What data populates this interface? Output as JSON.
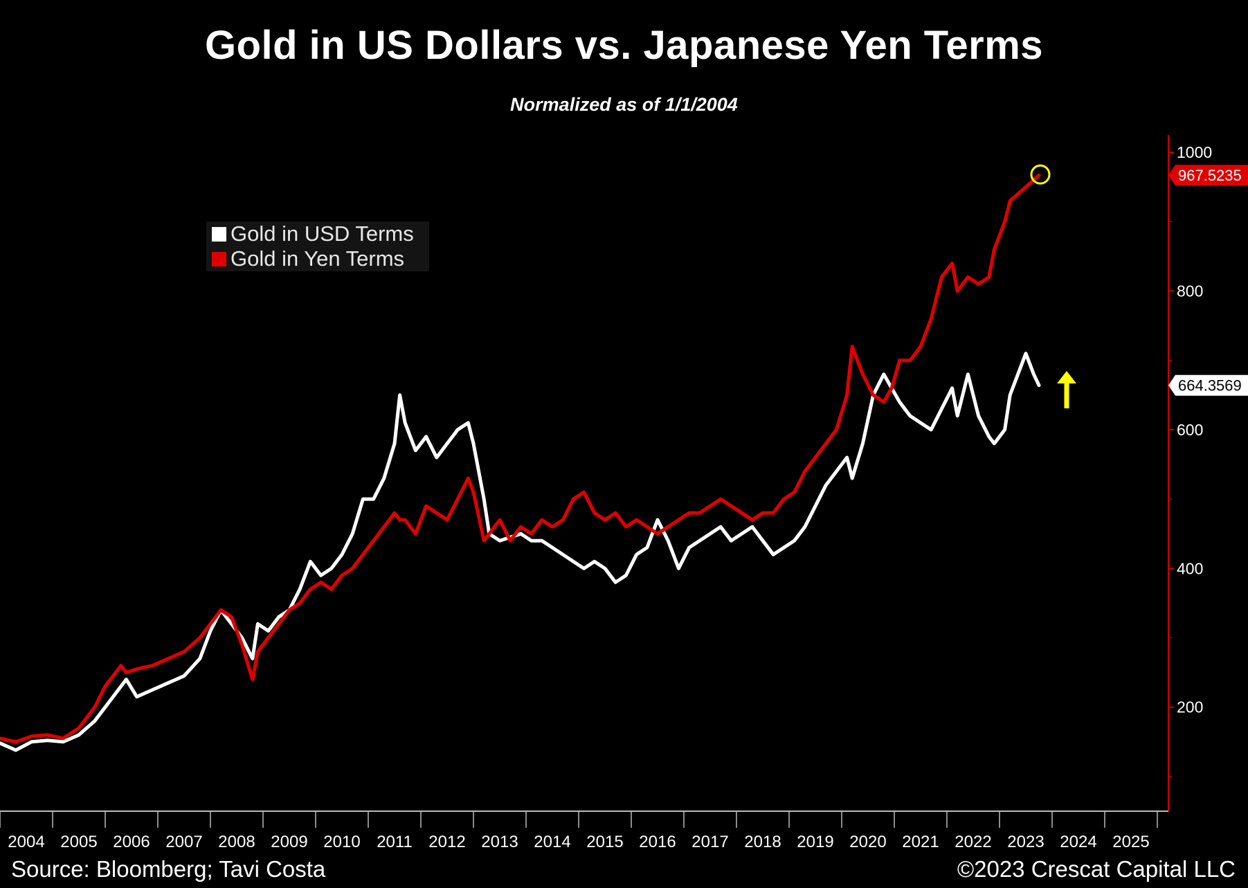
{
  "title": "Gold in US Dollars vs. Japanese Yen Terms",
  "subtitle": "Normalized as of 1/1/2004",
  "source": "Source: Bloomberg; Tavi Costa",
  "copyright": "©2023 Crescat Capital LLC",
  "colors": {
    "usd": "#ffffff",
    "yen": "#e00000",
    "annotation": "#ffff00",
    "axis": "#cc0000",
    "background": "#000000"
  },
  "chart_data": {
    "type": "line",
    "title": "Gold in US Dollars vs. Japanese Yen Terms",
    "subtitle": "Normalized as of 1/1/2004",
    "xlabel": "",
    "ylabel": "",
    "xlim": [
      2004.0,
      2026.2
    ],
    "ylim": [
      50,
      1030
    ],
    "x_ticks": [
      "2004",
      "2005",
      "2006",
      "2007",
      "2008",
      "2009",
      "2010",
      "2011",
      "2012",
      "2013",
      "2014",
      "2015",
      "2016",
      "2017",
      "2018",
      "2019",
      "2020",
      "2021",
      "2022",
      "2023",
      "2024",
      "2025"
    ],
    "y_ticks": [
      200,
      400,
      600,
      800,
      1000
    ],
    "y_axis_side": "right",
    "legend": {
      "position": "top-left",
      "entries": [
        "Gold in USD Terms",
        "Gold in Yen Terms"
      ]
    },
    "series": [
      {
        "name": "Gold in USD Terms",
        "color": "#ffffff",
        "last_value_label": "664.3569",
        "x": [
          2004.0,
          2004.3,
          2004.6,
          2004.9,
          2005.2,
          2005.5,
          2005.8,
          2006.0,
          2006.3,
          2006.4,
          2006.6,
          2006.9,
          2007.2,
          2007.5,
          2007.8,
          2008.0,
          2008.2,
          2008.4,
          2008.6,
          2008.8,
          2008.9,
          2009.1,
          2009.3,
          2009.5,
          2009.7,
          2009.9,
          2010.1,
          2010.3,
          2010.5,
          2010.7,
          2010.9,
          2011.1,
          2011.3,
          2011.5,
          2011.6,
          2011.7,
          2011.9,
          2012.1,
          2012.3,
          2012.5,
          2012.7,
          2012.9,
          2013.0,
          2013.2,
          2013.3,
          2013.5,
          2013.7,
          2013.9,
          2014.1,
          2014.3,
          2014.5,
          2014.7,
          2014.9,
          2015.1,
          2015.3,
          2015.5,
          2015.7,
          2015.9,
          2016.1,
          2016.3,
          2016.5,
          2016.7,
          2016.9,
          2017.1,
          2017.3,
          2017.5,
          2017.7,
          2017.9,
          2018.1,
          2018.3,
          2018.5,
          2018.7,
          2018.9,
          2019.1,
          2019.3,
          2019.5,
          2019.7,
          2019.9,
          2020.1,
          2020.2,
          2020.4,
          2020.6,
          2020.8,
          2020.95,
          2021.1,
          2021.3,
          2021.5,
          2021.7,
          2021.9,
          2022.1,
          2022.2,
          2022.4,
          2022.6,
          2022.8,
          2022.9,
          2023.1,
          2023.2,
          2023.35,
          2023.5,
          2023.65,
          2023.75
        ],
        "y": [
          148,
          138,
          150,
          152,
          150,
          160,
          180,
          200,
          230,
          240,
          215,
          225,
          235,
          245,
          270,
          310,
          340,
          320,
          300,
          270,
          320,
          310,
          330,
          340,
          370,
          410,
          390,
          400,
          420,
          450,
          500,
          500,
          530,
          580,
          650,
          610,
          570,
          590,
          560,
          580,
          600,
          610,
          580,
          500,
          450,
          440,
          445,
          450,
          440,
          440,
          430,
          420,
          410,
          400,
          410,
          400,
          380,
          390,
          420,
          430,
          470,
          440,
          400,
          430,
          440,
          450,
          460,
          440,
          450,
          460,
          440,
          420,
          430,
          440,
          460,
          490,
          520,
          540,
          560,
          530,
          580,
          650,
          680,
          660,
          640,
          620,
          610,
          600,
          630,
          660,
          620,
          680,
          620,
          590,
          580,
          600,
          650,
          680,
          710,
          680,
          664
        ]
      },
      {
        "name": "Gold in Yen Terms",
        "color": "#e00000",
        "last_value_label": "967.5235",
        "x": [
          2004.0,
          2004.3,
          2004.6,
          2004.9,
          2005.2,
          2005.5,
          2005.8,
          2006.0,
          2006.3,
          2006.4,
          2006.6,
          2006.9,
          2007.2,
          2007.5,
          2007.8,
          2008.0,
          2008.2,
          2008.4,
          2008.6,
          2008.8,
          2008.9,
          2009.1,
          2009.3,
          2009.5,
          2009.7,
          2009.9,
          2010.1,
          2010.3,
          2010.5,
          2010.7,
          2010.9,
          2011.1,
          2011.3,
          2011.5,
          2011.6,
          2011.7,
          2011.9,
          2012.1,
          2012.3,
          2012.5,
          2012.7,
          2012.9,
          2013.0,
          2013.2,
          2013.3,
          2013.5,
          2013.7,
          2013.9,
          2014.1,
          2014.3,
          2014.5,
          2014.7,
          2014.9,
          2015.1,
          2015.3,
          2015.5,
          2015.7,
          2015.9,
          2016.1,
          2016.3,
          2016.5,
          2016.7,
          2016.9,
          2017.1,
          2017.3,
          2017.5,
          2017.7,
          2017.9,
          2018.1,
          2018.3,
          2018.5,
          2018.7,
          2018.9,
          2019.1,
          2019.3,
          2019.5,
          2019.7,
          2019.9,
          2020.1,
          2020.2,
          2020.4,
          2020.6,
          2020.8,
          2020.95,
          2021.1,
          2021.3,
          2021.5,
          2021.7,
          2021.9,
          2022.1,
          2022.2,
          2022.4,
          2022.6,
          2022.8,
          2022.9,
          2023.1,
          2023.2,
          2023.35,
          2023.5,
          2023.65,
          2023.75
        ],
        "y": [
          155,
          150,
          158,
          160,
          155,
          170,
          200,
          230,
          260,
          250,
          255,
          260,
          270,
          280,
          300,
          320,
          340,
          330,
          290,
          240,
          280,
          300,
          320,
          340,
          350,
          370,
          380,
          370,
          390,
          400,
          420,
          440,
          460,
          480,
          470,
          470,
          450,
          490,
          480,
          470,
          500,
          530,
          510,
          440,
          450,
          470,
          440,
          460,
          450,
          470,
          460,
          470,
          500,
          510,
          480,
          470,
          480,
          460,
          470,
          460,
          450,
          460,
          470,
          480,
          480,
          490,
          500,
          490,
          480,
          470,
          480,
          480,
          500,
          510,
          540,
          560,
          580,
          600,
          650,
          720,
          680,
          650,
          640,
          660,
          700,
          700,
          720,
          760,
          820,
          840,
          800,
          820,
          810,
          820,
          860,
          900,
          930,
          940,
          950,
          960,
          967
        ]
      }
    ]
  }
}
